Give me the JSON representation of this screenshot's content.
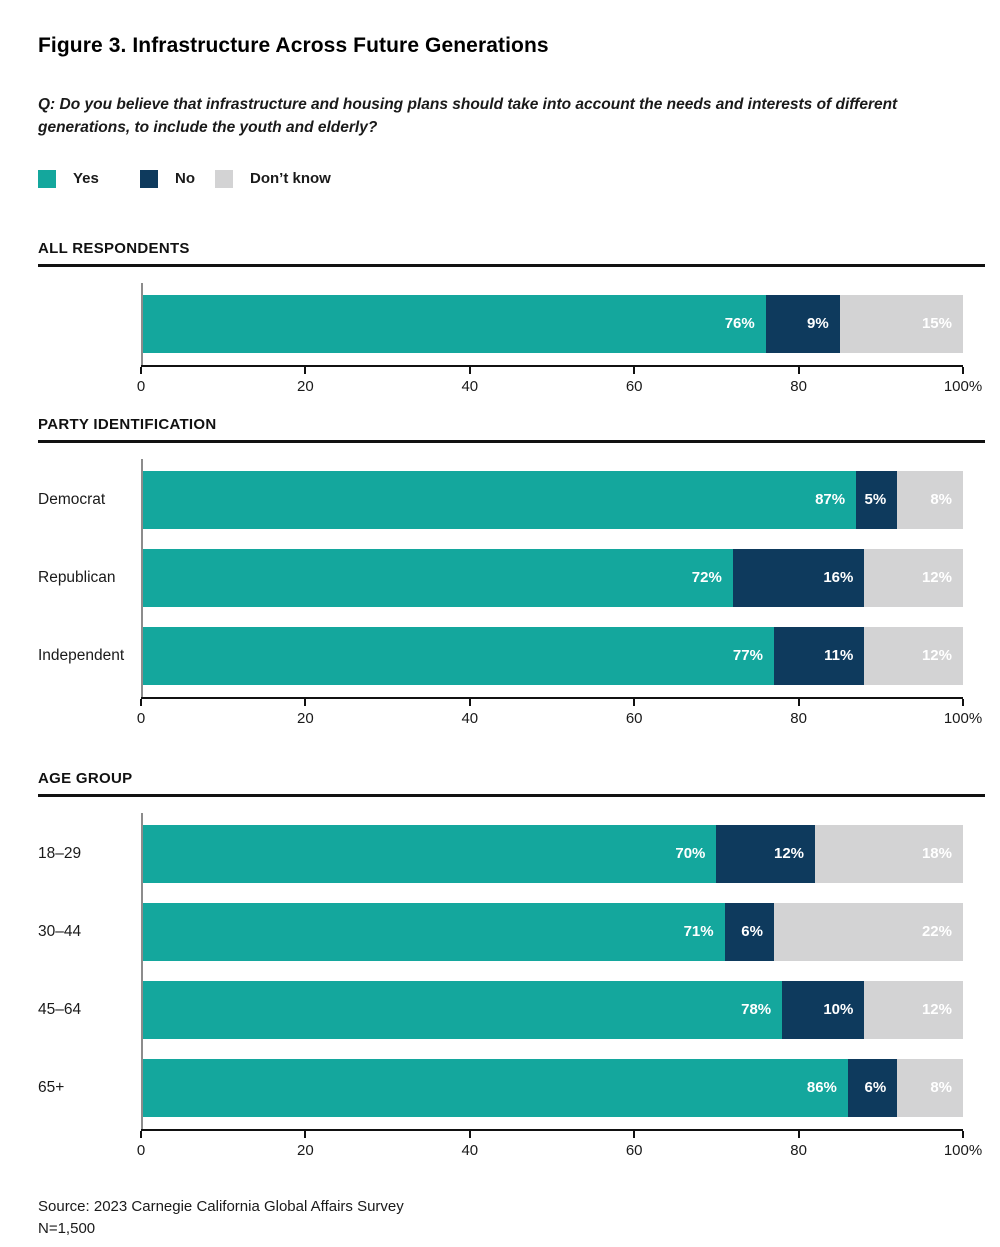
{
  "page": {
    "title": "Figure 3. Infrastructure Across Future Generations",
    "question": "Q: Do you believe that infrastructure and housing plans should take into account the needs and interests of different generations, to include the youth and elderly?",
    "source_line": "Source: 2023 Carnegie California Global Affairs Survey",
    "n_line": "N=1,500"
  },
  "legend": [
    {
      "label": "Yes",
      "color": "#14a79d"
    },
    {
      "label": "No",
      "color": "#0e3a5d"
    },
    {
      "label": "Don’t know",
      "color": "#d3d3d4"
    }
  ],
  "colors": {
    "yes": "#14a79d",
    "no": "#0e3a5d",
    "dont_know": "#d3d3d4",
    "axis_line": "#111111",
    "baseline_gray": "#8c8c8c",
    "text": "#1a1a1a"
  },
  "chart_data": [
    {
      "type": "bar",
      "orientation": "horizontal",
      "stacked": true,
      "section": "ALL RESPONDENTS",
      "categories": [
        ""
      ],
      "series": [
        {
          "name": "Yes",
          "values": [
            76
          ]
        },
        {
          "name": "No",
          "values": [
            9
          ]
        },
        {
          "name": "Don’t know",
          "values": [
            15
          ]
        }
      ],
      "x_ticks": [
        "0",
        "20",
        "40",
        "60",
        "80",
        "100%"
      ],
      "xlim": [
        0,
        100
      ],
      "grid": false,
      "legend_position": "top"
    },
    {
      "type": "bar",
      "orientation": "horizontal",
      "stacked": true,
      "section": "PARTY IDENTIFICATION",
      "categories": [
        "Democrat",
        "Republican",
        "Independent"
      ],
      "series": [
        {
          "name": "Yes",
          "values": [
            87,
            72,
            77
          ]
        },
        {
          "name": "No",
          "values": [
            5,
            16,
            11
          ]
        },
        {
          "name": "Don’t know",
          "values": [
            8,
            12,
            12
          ]
        }
      ],
      "x_ticks": [
        "0",
        "20",
        "40",
        "60",
        "80",
        "100%"
      ],
      "xlim": [
        0,
        100
      ],
      "grid": false,
      "legend_position": "top"
    },
    {
      "type": "bar",
      "orientation": "horizontal",
      "stacked": true,
      "section": "AGE GROUP",
      "categories": [
        "18–29",
        "30–44",
        "45–64",
        "65+"
      ],
      "series": [
        {
          "name": "Yes",
          "values": [
            70,
            71,
            78,
            86
          ]
        },
        {
          "name": "No",
          "values": [
            12,
            6,
            10,
            6
          ]
        },
        {
          "name": "Don’t know",
          "values": [
            18,
            22,
            12,
            8
          ]
        }
      ],
      "x_ticks": [
        "0",
        "20",
        "40",
        "60",
        "80",
        "100%"
      ],
      "xlim": [
        0,
        100
      ],
      "grid": false,
      "legend_position": "top"
    }
  ]
}
